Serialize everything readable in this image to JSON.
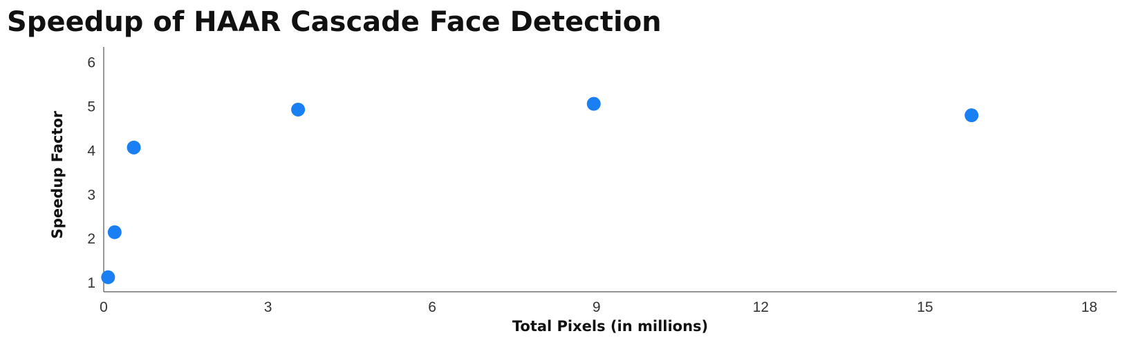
{
  "chart_data": {
    "type": "scatter",
    "title": "Speedup of HAAR Cascade Face Detection",
    "xlabel": "Total Pixels (in millions)",
    "ylabel": "Speedup Factor",
    "xlim": [
      0,
      18.5
    ],
    "ylim": [
      0.8,
      6.35
    ],
    "xticks": [
      0,
      3,
      6,
      9,
      12,
      15,
      18
    ],
    "yticks": [
      1,
      2,
      3,
      4,
      5,
      6
    ],
    "grid": false,
    "legend": "none",
    "marker_color": "#1a7ff2",
    "points": [
      {
        "x": 0.08,
        "y": 1.13
      },
      {
        "x": 0.2,
        "y": 2.15
      },
      {
        "x": 0.55,
        "y": 4.07
      },
      {
        "x": 3.55,
        "y": 4.93
      },
      {
        "x": 8.95,
        "y": 5.06
      },
      {
        "x": 15.85,
        "y": 4.8
      }
    ]
  }
}
